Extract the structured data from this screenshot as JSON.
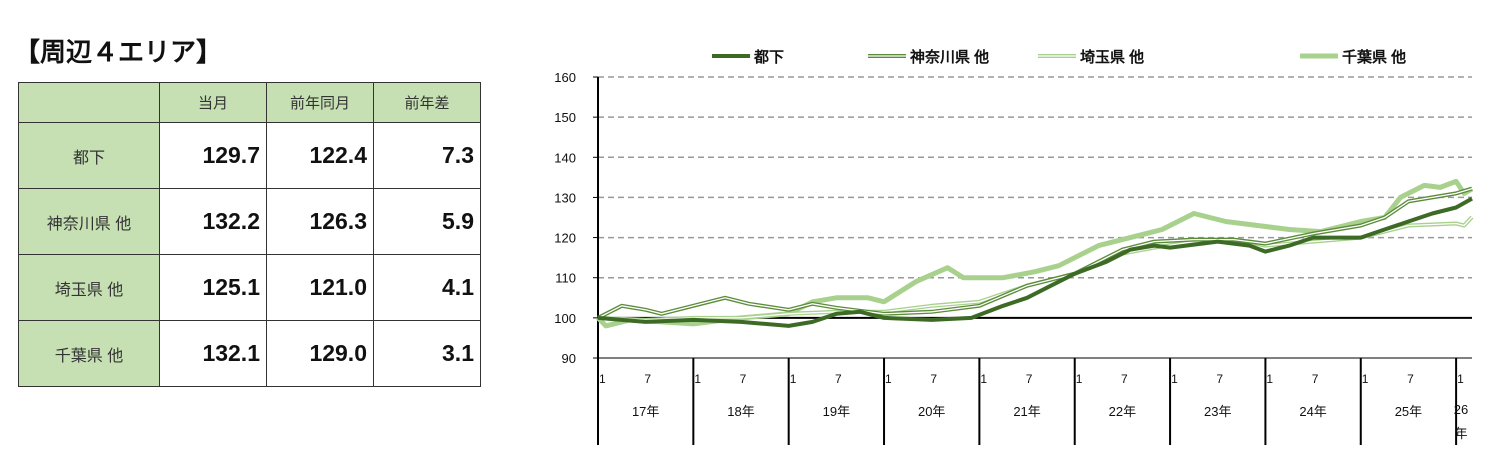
{
  "title": "【周辺４エリア】",
  "table": {
    "headers": [
      "",
      "当月",
      "前年同月",
      "前年差"
    ],
    "rows": [
      {
        "label": "都下",
        "current": "129.7",
        "prev_year": "122.4",
        "diff": "7.3"
      },
      {
        "label": "神奈川県 他",
        "current": "132.2",
        "prev_year": "126.3",
        "diff": "5.9"
      },
      {
        "label": "埼玉県 他",
        "current": "125.1",
        "prev_year": "121.0",
        "diff": "4.1"
      },
      {
        "label": "千葉県 他",
        "current": "132.1",
        "prev_year": "129.0",
        "diff": "3.1"
      }
    ]
  },
  "chart_data": {
    "type": "line",
    "ylim": [
      90,
      160
    ],
    "yticks": [
      90,
      100,
      110,
      120,
      130,
      140,
      150,
      160
    ],
    "x_month_ticks": [
      "1",
      "7"
    ],
    "years": [
      "17年",
      "18年",
      "19年",
      "20年",
      "21年",
      "22年",
      "23年",
      "24年",
      "25年",
      "26年"
    ],
    "x_note": "month index 0 = Jan 2017",
    "xmax": 110,
    "legend_position": "top",
    "series": [
      {
        "name": "都下",
        "color": "#3d6b26",
        "width": 4,
        "outline": false,
        "points": [
          [
            0,
            100
          ],
          [
            3,
            99.5
          ],
          [
            6,
            99
          ],
          [
            12,
            99.5
          ],
          [
            18,
            99
          ],
          [
            24,
            98
          ],
          [
            27,
            99
          ],
          [
            30,
            101
          ],
          [
            33,
            101.5
          ],
          [
            36,
            100
          ],
          [
            42,
            99.5
          ],
          [
            47,
            100
          ],
          [
            51,
            103
          ],
          [
            54,
            105
          ],
          [
            57,
            108
          ],
          [
            60,
            111
          ],
          [
            64,
            114
          ],
          [
            67,
            117
          ],
          [
            70,
            118
          ],
          [
            72,
            117.5
          ],
          [
            78,
            119
          ],
          [
            82,
            118
          ],
          [
            84,
            116.5
          ],
          [
            87,
            118
          ],
          [
            90,
            120
          ],
          [
            96,
            120
          ],
          [
            99,
            122
          ],
          [
            102,
            124
          ],
          [
            105,
            126
          ],
          [
            108,
            127.5
          ],
          [
            110,
            129.7
          ]
        ]
      },
      {
        "name": "神奈川県 他",
        "color": "#5b8c3a",
        "width": 4,
        "outline": true,
        "points": [
          [
            0,
            100
          ],
          [
            3,
            103
          ],
          [
            6,
            102
          ],
          [
            8,
            101
          ],
          [
            12,
            103
          ],
          [
            16,
            105
          ],
          [
            19,
            103.5
          ],
          [
            24,
            102
          ],
          [
            27,
            103.5
          ],
          [
            30,
            102.5
          ],
          [
            36,
            101
          ],
          [
            42,
            101.5
          ],
          [
            48,
            103
          ],
          [
            54,
            108
          ],
          [
            60,
            111
          ],
          [
            66,
            117
          ],
          [
            70,
            119
          ],
          [
            75,
            119.5
          ],
          [
            80,
            119.5
          ],
          [
            84,
            118.5
          ],
          [
            90,
            121
          ],
          [
            96,
            123
          ],
          [
            99,
            125
          ],
          [
            102,
            129
          ],
          [
            105,
            130
          ],
          [
            108,
            131
          ],
          [
            110,
            132.2
          ]
        ]
      },
      {
        "name": "埼玉県 他",
        "color": "#a9d18e",
        "width": 4,
        "outline": true,
        "points": [
          [
            0,
            100
          ],
          [
            6,
            99.5
          ],
          [
            12,
            100
          ],
          [
            18,
            100
          ],
          [
            24,
            101
          ],
          [
            30,
            101.5
          ],
          [
            36,
            101.5
          ],
          [
            42,
            103
          ],
          [
            48,
            104
          ],
          [
            54,
            108
          ],
          [
            60,
            111
          ],
          [
            66,
            116
          ],
          [
            70,
            117.5
          ],
          [
            75,
            119
          ],
          [
            80,
            119.5
          ],
          [
            84,
            118
          ],
          [
            90,
            119
          ],
          [
            96,
            120
          ],
          [
            102,
            123
          ],
          [
            108,
            123.5
          ],
          [
            109,
            123
          ],
          [
            110,
            125.1
          ]
        ]
      },
      {
        "name": "千葉県 他",
        "color": "#a9d18e",
        "width": 5,
        "outline": false,
        "points": [
          [
            0,
            100
          ],
          [
            1,
            98
          ],
          [
            4,
            99.5
          ],
          [
            8,
            99
          ],
          [
            12,
            98.5
          ],
          [
            18,
            100
          ],
          [
            24,
            101
          ],
          [
            27,
            104
          ],
          [
            30,
            105
          ],
          [
            34,
            105
          ],
          [
            36,
            104
          ],
          [
            40,
            109
          ],
          [
            44,
            112.5
          ],
          [
            46,
            110
          ],
          [
            51,
            110
          ],
          [
            55,
            111.5
          ],
          [
            58,
            113
          ],
          [
            63,
            118
          ],
          [
            67,
            120
          ],
          [
            71,
            122
          ],
          [
            75,
            126
          ],
          [
            79,
            124
          ],
          [
            83,
            123
          ],
          [
            87,
            122
          ],
          [
            91,
            121.5
          ],
          [
            96,
            124
          ],
          [
            99,
            125
          ],
          [
            101,
            130
          ],
          [
            104,
            133
          ],
          [
            106,
            132.5
          ],
          [
            108,
            134
          ],
          [
            109,
            131
          ],
          [
            110,
            132.1
          ]
        ]
      }
    ]
  }
}
